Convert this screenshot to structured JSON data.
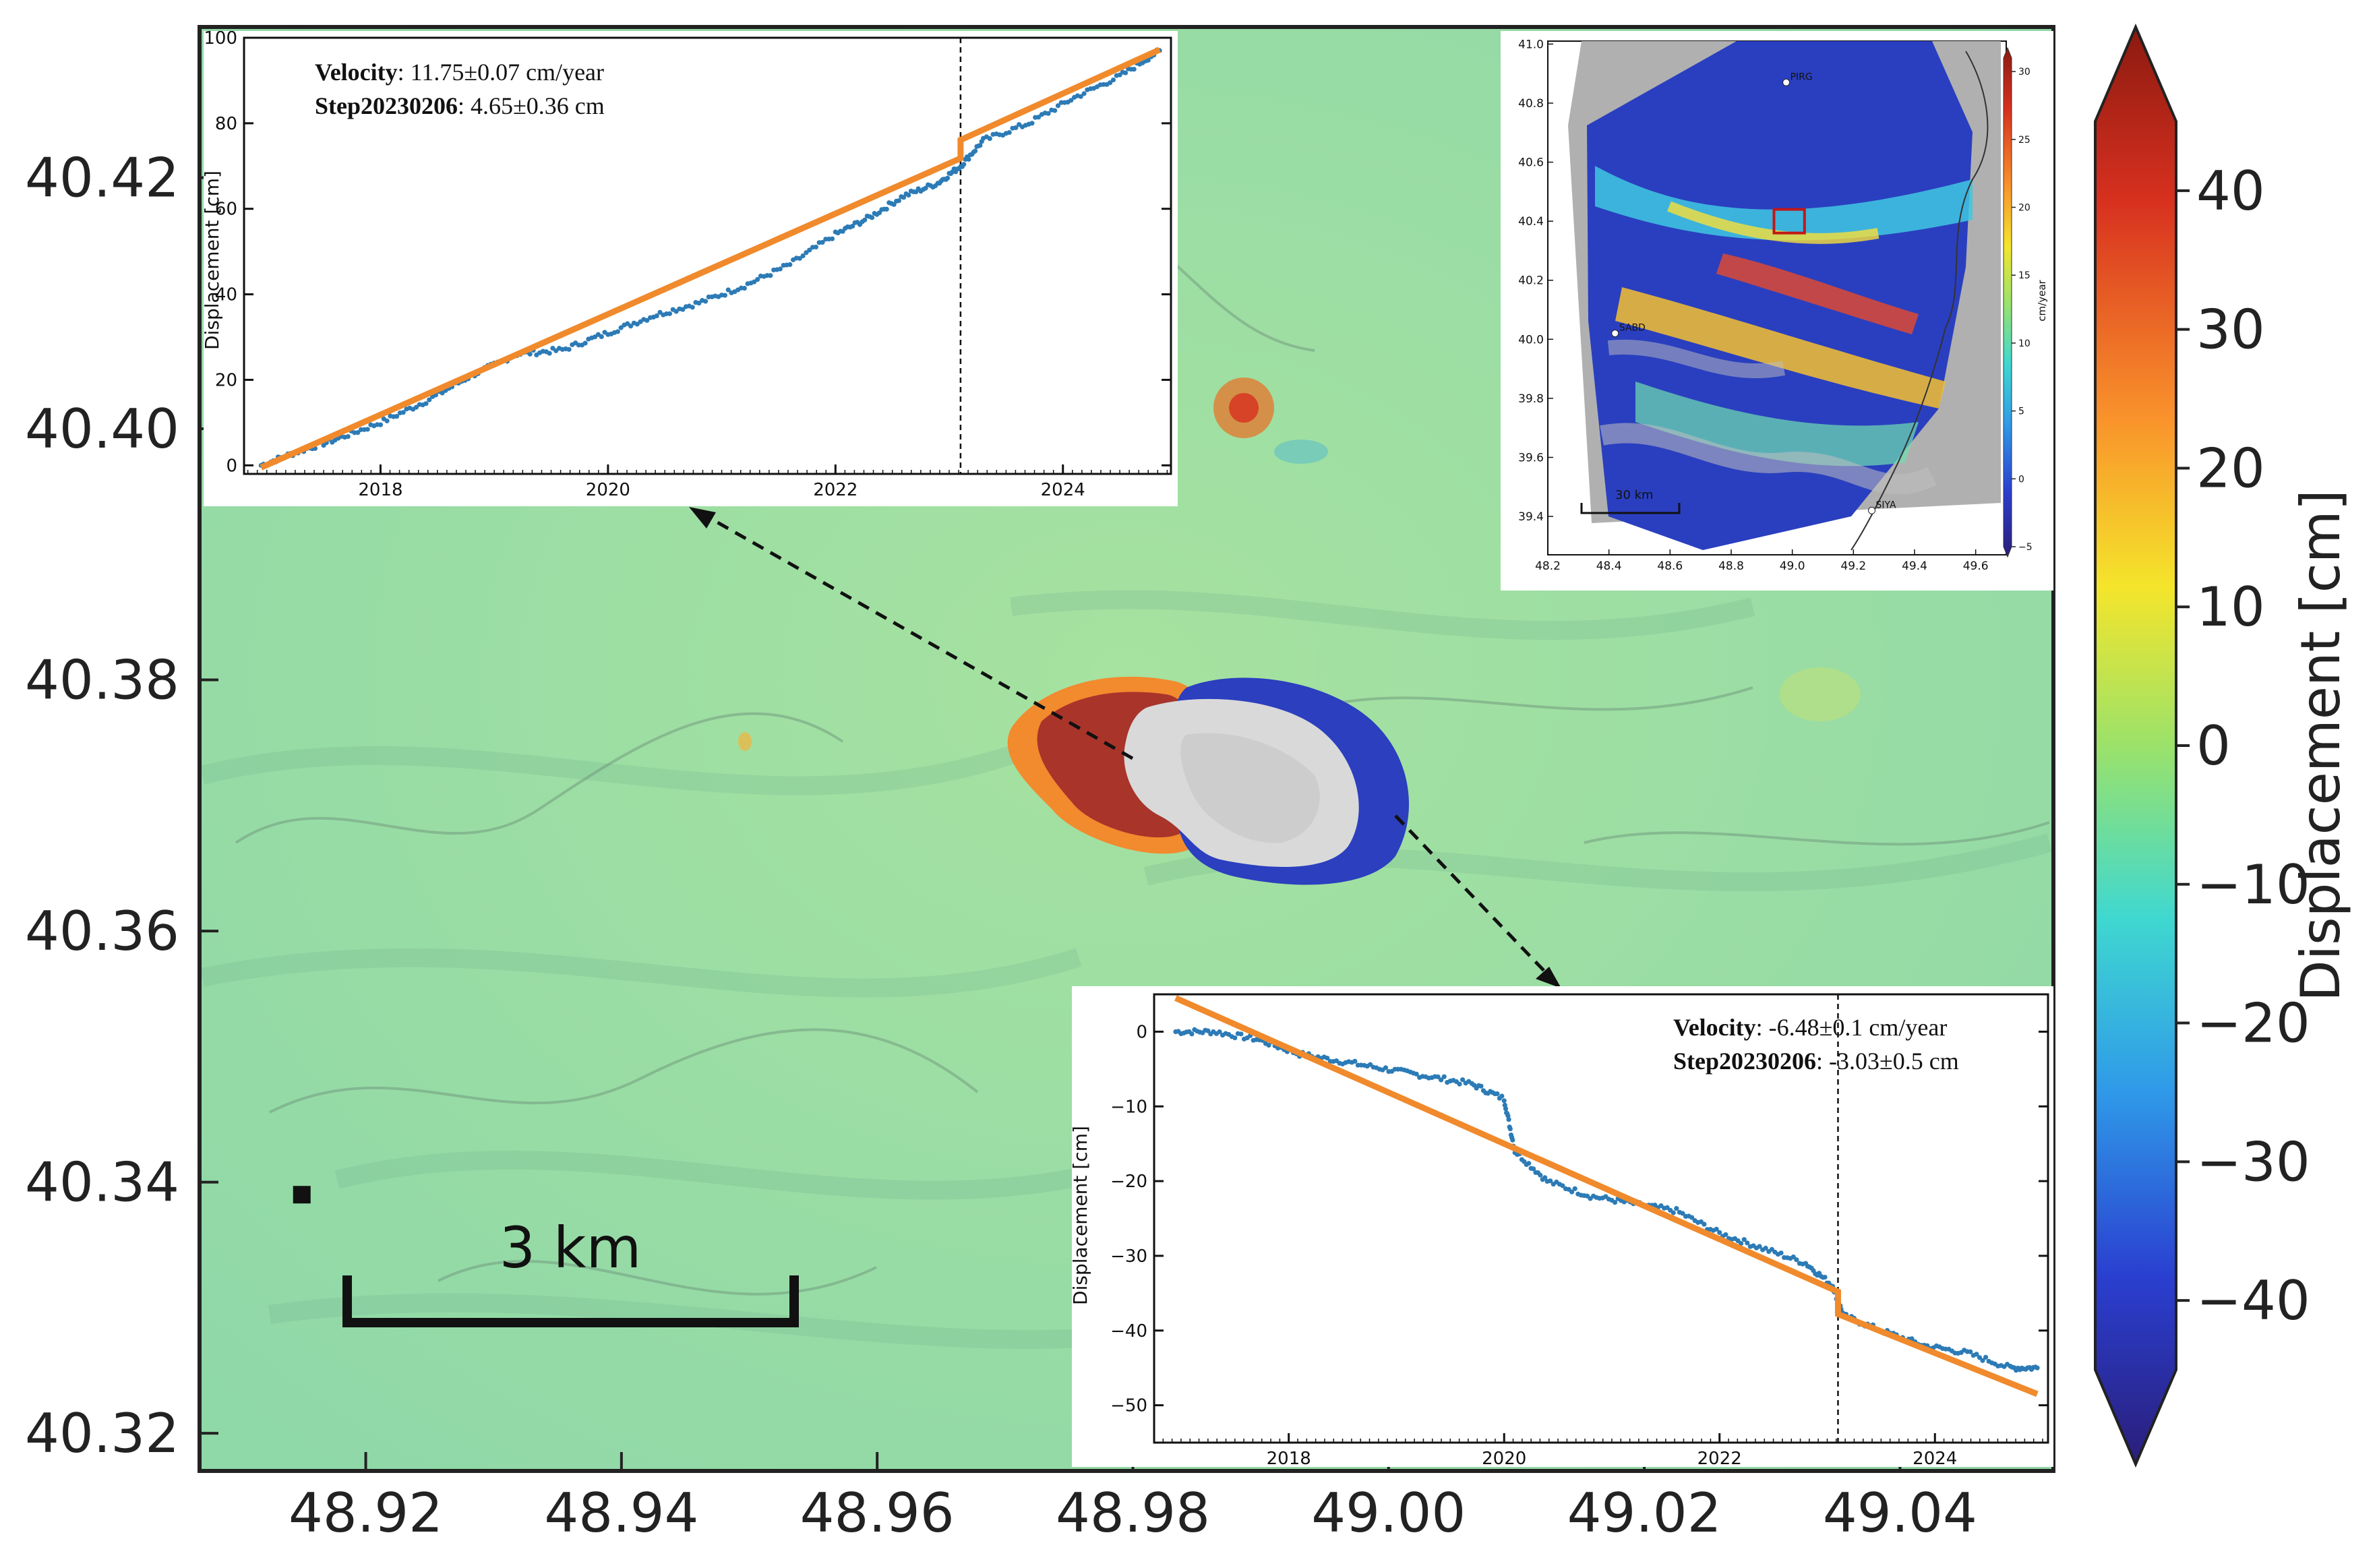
{
  "chart_data": [
    {
      "type": "heatmap",
      "description_free": true,
      "x_ticks": [
        "48.92",
        "48.94",
        "48.96",
        "48.98",
        "49.00",
        "49.02",
        "49.04"
      ],
      "x_tick_values": [
        48.92,
        48.94,
        48.96,
        48.98,
        49.0,
        49.02,
        49.04
      ],
      "y_ticks": [
        "40.42",
        "40.40",
        "40.38",
        "40.36",
        "40.34",
        "40.32"
      ],
      "y_tick_values": [
        40.42,
        40.4,
        40.38,
        40.36,
        40.34,
        40.32
      ],
      "xlim": [
        48.907,
        49.052
      ],
      "ylim": [
        40.317,
        40.432
      ],
      "colorbar": {
        "label": "Displacement [cm]",
        "ticks": [
          "40",
          "30",
          "20",
          "10",
          "0",
          "−10",
          "−20",
          "−30",
          "−40"
        ],
        "tick_values": [
          40,
          30,
          20,
          10,
          0,
          -10,
          -20,
          -30,
          -40
        ],
        "range": [
          -45,
          45
        ],
        "colormap": "jet",
        "extend": "both"
      },
      "scale_bar_label": "3 km",
      "marker": {
        "x": 48.915,
        "y": 40.339
      },
      "features": [
        {
          "type": "uplift-lobe",
          "x": 48.982,
          "y": 40.375,
          "color": "#a8342a"
        },
        {
          "type": "no-data-core",
          "x": 48.993,
          "y": 40.373,
          "color": "#d6d6d6"
        },
        {
          "type": "subsidence-rim",
          "x": 49.0,
          "y": 40.372,
          "color": "#2b3fbf"
        }
      ],
      "arrows": [
        {
          "from": {
            "x": 48.985,
            "y": 40.374
          },
          "to_inset": "top-left"
        },
        {
          "from": {
            "x": 49.002,
            "y": 40.368
          },
          "to_inset": "bottom-right"
        }
      ]
    },
    {
      "type": "scatter",
      "ylabel": "Displacement [cm]",
      "xlim": [
        2016.8,
        2024.95
      ],
      "ylim": [
        -2,
        100
      ],
      "x_ticks": [
        "2018",
        "2020",
        "2022",
        "2024"
      ],
      "x_tick_values": [
        2018,
        2020,
        2022,
        2024
      ],
      "y_ticks": [
        "0",
        "20",
        "40",
        "60",
        "80",
        "100"
      ],
      "y_tick_values": [
        0,
        20,
        40,
        60,
        80,
        100
      ],
      "step_date": 2023.1,
      "annotation": [
        {
          "label": "Velocity",
          "value": ": 11.75±0.07 cm/year"
        },
        {
          "label": "Step20230206",
          "value": ": 4.65±0.36 cm"
        }
      ],
      "fit": {
        "start": [
          2016.95,
          -0.5
        ],
        "pre_step_end": [
          2023.1,
          71.8
        ],
        "post_step_start": [
          2023.1,
          76.1
        ],
        "end": [
          2024.85,
          97.2
        ]
      },
      "series": [
        {
          "x": [
            2016.95,
            2017.25,
            2017.6,
            2018.0,
            2018.4,
            2018.8,
            2019.2,
            2019.6,
            2020.0,
            2020.4,
            2020.8,
            2021.2,
            2021.6,
            2022.0,
            2022.3,
            2022.6,
            2022.9,
            2023.1,
            2023.3,
            2023.7,
            2024.1,
            2024.5,
            2024.85
          ],
          "y": [
            0,
            3,
            6,
            10,
            15,
            21,
            26,
            27,
            31,
            35,
            38,
            42,
            47,
            54,
            58,
            63,
            66,
            70,
            76,
            80,
            86,
            91,
            97
          ]
        }
      ]
    },
    {
      "type": "heatmap",
      "colorbar_label": "cm/year",
      "x_ticks": [
        "48.2",
        "48.4",
        "48.6",
        "48.8",
        "49.0",
        "49.2",
        "49.4",
        "49.6"
      ],
      "x_tick_values": [
        48.2,
        48.4,
        48.6,
        48.8,
        49.0,
        49.2,
        49.4,
        49.6
      ],
      "y_ticks": [
        "41.0",
        "40.8",
        "40.6",
        "40.4",
        "40.2",
        "40.0",
        "39.8",
        "39.6",
        "39.4"
      ],
      "y_tick_values": [
        41.0,
        40.8,
        40.6,
        40.4,
        40.2,
        40.0,
        39.8,
        39.6,
        39.4
      ],
      "xlim": [
        48.2,
        49.7
      ],
      "ylim": [
        39.27,
        41.01
      ],
      "colorbar_ticks": [
        "30",
        "25",
        "20",
        "15",
        "10",
        "5",
        "0",
        "−5"
      ],
      "colorbar_tick_values": [
        30,
        25,
        20,
        15,
        10,
        5,
        0,
        -5
      ],
      "colorbar_range": [
        -5,
        31
      ],
      "stations": [
        {
          "label": "PIRG",
          "x": 48.98,
          "y": 40.87
        },
        {
          "label": "SABD",
          "x": 48.42,
          "y": 40.02
        },
        {
          "label": "SIYA",
          "x": 49.26,
          "y": 39.42
        }
      ],
      "scale_bar_label": "30 km",
      "study_area_box": {
        "x": [
          48.94,
          49.04
        ],
        "y": [
          40.36,
          40.44
        ]
      }
    },
    {
      "type": "scatter",
      "ylabel": "Displacement [cm]",
      "xlim": [
        2016.75,
        2025.05
      ],
      "ylim": [
        -55,
        5
      ],
      "x_ticks": [
        "2018",
        "2020",
        "2022",
        "2024"
      ],
      "x_tick_values": [
        2018,
        2020,
        2022,
        2024
      ],
      "y_ticks": [
        "0",
        "−10",
        "−20",
        "−30",
        "−40",
        "−50"
      ],
      "y_tick_values": [
        0,
        -10,
        -20,
        -30,
        -40,
        -50
      ],
      "step_date": 2023.1,
      "annotation": [
        {
          "label": "Velocity",
          "value": ": -6.48±0.1 cm/year"
        },
        {
          "label": "Step20230206",
          "value": ": -3.03±0.5 cm"
        }
      ],
      "fit": {
        "start": [
          2016.95,
          4.5
        ],
        "pre_step_end": [
          2023.1,
          -34.8
        ],
        "post_step_start": [
          2023.1,
          -37.8
        ],
        "end": [
          2024.95,
          -48.5
        ]
      },
      "series": [
        {
          "x": [
            2016.95,
            2017.3,
            2017.7,
            2018.1,
            2018.5,
            2018.9,
            2019.3,
            2019.7,
            2020.0,
            2020.1,
            2020.4,
            2020.8,
            2021.2,
            2021.6,
            2022.0,
            2022.4,
            2022.8,
            2023.05,
            2023.15,
            2023.5,
            2023.9,
            2024.3,
            2024.7,
            2024.95
          ],
          "y": [
            0,
            0,
            -1,
            -3,
            -4,
            -5,
            -6,
            -7,
            -9,
            -16,
            -20,
            -22,
            -23,
            -24,
            -27,
            -29,
            -31,
            -34,
            -38,
            -40,
            -42,
            -43,
            -45,
            -45
          ]
        }
      ]
    }
  ]
}
